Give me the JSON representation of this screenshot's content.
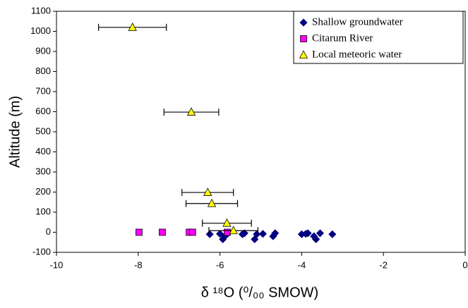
{
  "chart_data": {
    "type": "scatter",
    "xlabel": "δ ¹⁸O (⁰/₀₀ SMOW)",
    "ylabel": "Altitude (m)",
    "xlim": [
      -10,
      0
    ],
    "xticks": [
      -10,
      -8,
      -6,
      -4,
      -2,
      0
    ],
    "ylim": [
      -100,
      1100
    ],
    "yticks": [
      -100,
      0,
      100,
      200,
      300,
      400,
      500,
      600,
      700,
      800,
      900,
      1000,
      1100
    ],
    "grid": false,
    "legend": "top-right",
    "series": [
      {
        "name": "Shallow groundwater",
        "color": "#000080",
        "marker": "diamond",
        "x": [
          -6.25,
          -6.0,
          -5.93,
          -5.88,
          -5.8,
          -5.45,
          -5.4,
          -5.15,
          -5.1,
          -4.95,
          -4.7,
          -4.65,
          -4.0,
          -3.9,
          -3.85,
          -3.7,
          -3.65,
          -3.55,
          -3.25
        ],
        "values": [
          -10,
          -8,
          -35,
          -20,
          -5,
          -10,
          -5,
          -35,
          -10,
          -8,
          -20,
          -5,
          -10,
          -8,
          -5,
          -20,
          -35,
          -5,
          -10
        ]
      },
      {
        "name": "Citarum River",
        "color": "#ff00ff",
        "marker": "square",
        "x": [
          -7.98,
          -7.41,
          -6.75,
          -6.67,
          -5.82
        ],
        "values": [
          0,
          0,
          0,
          0,
          0
        ]
      },
      {
        "name": "Local meteoric water",
        "color": "#ffff00",
        "marker": "triangle",
        "x": [
          -8.14,
          -6.7,
          -6.3,
          -6.2,
          -5.83,
          -5.67
        ],
        "values": [
          1020,
          598,
          198,
          143,
          45,
          8
        ],
        "x_err": [
          0.83,
          0.67,
          0.63,
          0.63,
          0.6,
          0.6
        ]
      }
    ]
  }
}
